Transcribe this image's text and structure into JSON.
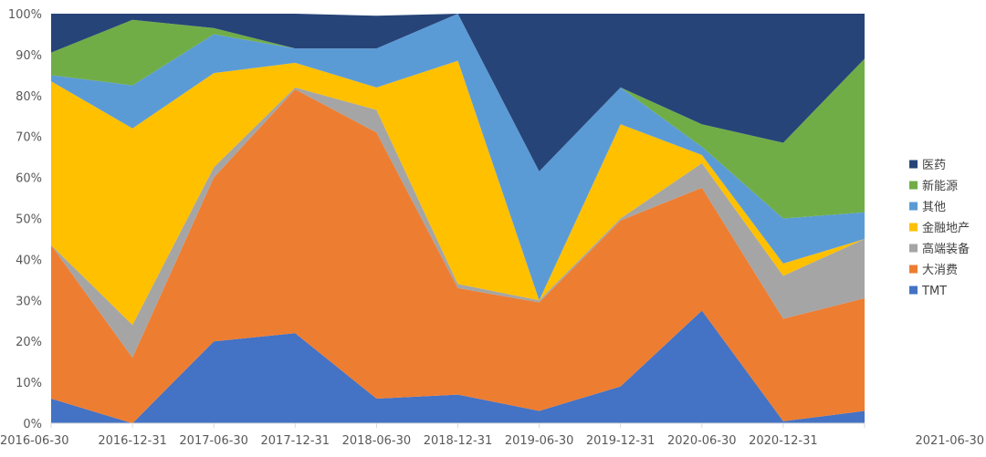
{
  "chart_data": {
    "type": "area",
    "stacked": "percent",
    "title": "",
    "xlabel": "",
    "ylabel": "",
    "ylim": [
      0,
      100
    ],
    "y_ticks": [
      "0%",
      "10%",
      "20%",
      "30%",
      "40%",
      "50%",
      "60%",
      "70%",
      "80%",
      "90%",
      "100%"
    ],
    "grid": false,
    "legend_position": "right",
    "categories": [
      "2016-06-30",
      "2016-12-31",
      "2017-06-30",
      "2017-12-31",
      "2018-06-30",
      "2018-12-31",
      "2019-06-30",
      "2019-12-31",
      "2020-06-30",
      "2020-12-31",
      "2021-06-30"
    ],
    "series": [
      {
        "name": "TMT",
        "color": "#4472C4",
        "values": [
          6,
          0,
          20,
          22,
          6,
          7,
          3,
          9,
          27.5,
          0.5,
          3
        ]
      },
      {
        "name": "大消费",
        "color": "#ED7D31",
        "values": [
          37.5,
          16,
          40,
          59.5,
          65,
          26,
          26.5,
          40.5,
          30,
          25,
          27.5
        ]
      },
      {
        "name": "高端装备",
        "color": "#A5A5A5",
        "values": [
          0,
          8,
          2.5,
          0.5,
          5.5,
          1,
          0.5,
          0.5,
          6,
          10.5,
          14.5
        ]
      },
      {
        "name": "金融地产",
        "color": "#FFC000",
        "values": [
          40,
          48,
          23,
          6,
          5.5,
          54.5,
          0,
          23,
          2,
          3,
          0
        ]
      },
      {
        "name": "其他",
        "color": "#5B9BD5",
        "values": [
          1.5,
          10.5,
          9.5,
          3.5,
          9.5,
          11.5,
          31.5,
          9,
          2,
          11,
          6.5
        ]
      },
      {
        "name": "新能源",
        "color": "#70AD47",
        "values": [
          5.5,
          16,
          1.5,
          0,
          0,
          0,
          0,
          0,
          5.5,
          18.5,
          37.5
        ]
      },
      {
        "name": "医药",
        "color": "#264478",
        "values": [
          9.5,
          1.5,
          3.5,
          8.5,
          8,
          0,
          38.5,
          18,
          27,
          31.5,
          11
        ]
      }
    ],
    "legend_order": [
      "医药",
      "新能源",
      "其他",
      "金融地产",
      "高端装备",
      "大消费",
      "TMT"
    ],
    "axis_color": "#D9D9D9"
  }
}
